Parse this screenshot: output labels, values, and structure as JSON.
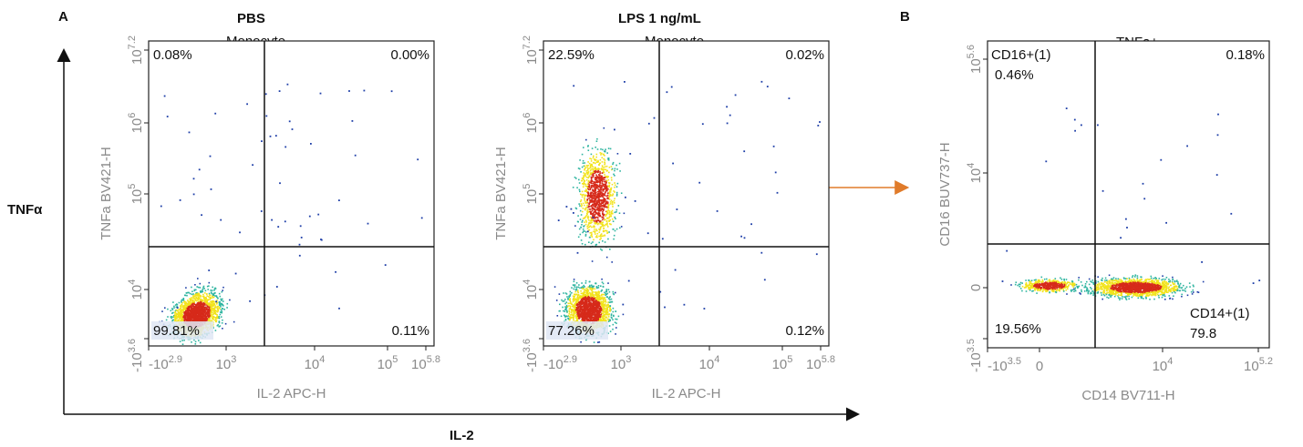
{
  "figure": {
    "panel_a_label": "A",
    "panel_b_label": "B",
    "y_axis_overall": "TNFα",
    "x_axis_overall": "IL-2"
  },
  "chart_data": [
    {
      "type": "scatter",
      "id": "pbs",
      "condition": "PBS",
      "title": "Monocyte",
      "xlabel": "IL-2 APC-H",
      "ylabel": "TNFa BV421-H",
      "x_ticks": [
        {
          "base": "-10",
          "exp": "2.9"
        },
        {
          "base": "10",
          "exp": "3"
        },
        {
          "base": "10",
          "exp": "4"
        },
        {
          "base": "10",
          "exp": "5"
        },
        {
          "base": "10",
          "exp": "5.8"
        }
      ],
      "y_ticks": [
        {
          "base": "-10",
          "exp": "3.6"
        },
        {
          "base": "10",
          "exp": "4"
        },
        {
          "base": "10",
          "exp": "5"
        },
        {
          "base": "10",
          "exp": "6"
        },
        {
          "base": "10",
          "exp": "7.2"
        }
      ],
      "quadrants": {
        "UL": "0.08%",
        "UR": "0.00%",
        "LL": "99.81%",
        "LR": "0.11%"
      }
    },
    {
      "type": "scatter",
      "id": "lps",
      "condition": "LPS 1 ng/mL",
      "title": "Monocyte",
      "xlabel": "IL-2 APC-H",
      "ylabel": "TNFa BV421-H",
      "x_ticks": [
        {
          "base": "-10",
          "exp": "2.9"
        },
        {
          "base": "10",
          "exp": "3"
        },
        {
          "base": "10",
          "exp": "4"
        },
        {
          "base": "10",
          "exp": "5"
        },
        {
          "base": "10",
          "exp": "5.8"
        }
      ],
      "y_ticks": [
        {
          "base": "-10",
          "exp": "3.6"
        },
        {
          "base": "10",
          "exp": "4"
        },
        {
          "base": "10",
          "exp": "5"
        },
        {
          "base": "10",
          "exp": "6"
        },
        {
          "base": "10",
          "exp": "7.2"
        }
      ],
      "quadrants": {
        "UL": "22.59%",
        "UR": "0.02%",
        "LL": "77.26%",
        "LR": "0.12%"
      }
    },
    {
      "type": "scatter",
      "id": "tnfa",
      "title": "TNFa+",
      "xlabel": "CD14 BV711-H",
      "ylabel": "CD16 BUV737-H",
      "x_ticks": [
        {
          "base": "-10",
          "exp": "3.5"
        },
        {
          "base": "0",
          "exp": ""
        },
        {
          "base": "10",
          "exp": "4"
        },
        {
          "base": "10",
          "exp": "5.2"
        }
      ],
      "y_ticks": [
        {
          "base": "-10",
          "exp": "3.5"
        },
        {
          "base": "0",
          "exp": ""
        },
        {
          "base": "10",
          "exp": "4"
        },
        {
          "base": "10",
          "exp": "5.6"
        }
      ],
      "quadrants": {
        "UL_name": "CD16+(1)",
        "UL": "0.46%",
        "UR": "0.18%",
        "LL": "19.56%",
        "LR_name": "CD14+(1)",
        "LR": "79.8"
      }
    }
  ],
  "colors": {
    "arrow": "#e07b2a",
    "axis_text": "#8a8a8a",
    "density_low": "#1f3fa8",
    "density_mid": "#2fb5a0",
    "density_high": "#f2e31b",
    "density_peak": "#d62a1a"
  }
}
